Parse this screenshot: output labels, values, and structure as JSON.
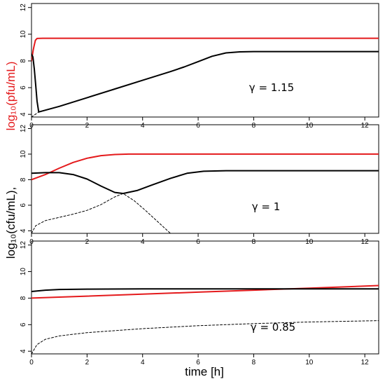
{
  "chart_data": [
    {
      "type": "line",
      "annotation": "γ = 1.15",
      "xlim": [
        0,
        12.5
      ],
      "ylim": [
        3.8,
        12.3
      ],
      "x_ticks": [
        0,
        2,
        4,
        6,
        8,
        10,
        12
      ],
      "y_ticks": [
        4,
        6,
        8,
        10,
        12
      ],
      "series": [
        {
          "color": "#e41a1c",
          "style": "solid",
          "points": [
            [
              0,
              8.0
            ],
            [
              0.03,
              8.4
            ],
            [
              0.06,
              8.8
            ],
            [
              0.1,
              9.2
            ],
            [
              0.14,
              9.55
            ],
            [
              0.2,
              9.68
            ],
            [
              0.4,
              9.7
            ],
            [
              12.5,
              9.7
            ]
          ]
        },
        {
          "color": "#000000",
          "style": "solid",
          "points": [
            [
              0,
              8.5
            ],
            [
              0.05,
              8.3
            ],
            [
              0.1,
              7.4
            ],
            [
              0.15,
              6.2
            ],
            [
              0.2,
              5.0
            ],
            [
              0.26,
              4.18
            ],
            [
              1,
              4.6
            ],
            [
              2,
              5.25
            ],
            [
              3,
              5.9
            ],
            [
              4,
              6.55
            ],
            [
              5,
              7.2
            ],
            [
              5.5,
              7.55
            ],
            [
              6,
              7.95
            ],
            [
              6.5,
              8.35
            ],
            [
              7,
              8.6
            ],
            [
              7.5,
              8.68
            ],
            [
              8,
              8.7
            ],
            [
              12.5,
              8.7
            ]
          ]
        },
        {
          "color": "#000000",
          "style": "dashed",
          "points": [
            [
              0,
              3.8
            ],
            [
              0.1,
              3.95
            ],
            [
              0.2,
              4.08
            ],
            [
              0.26,
              4.18
            ]
          ]
        }
      ]
    },
    {
      "type": "line",
      "annotation": "γ = 1",
      "xlim": [
        0,
        12.5
      ],
      "ylim": [
        3.8,
        12.3
      ],
      "x_ticks": [
        0,
        2,
        4,
        6,
        8,
        10,
        12
      ],
      "y_ticks": [
        4,
        6,
        8,
        10,
        12
      ],
      "series": [
        {
          "color": "#e41a1c",
          "style": "solid",
          "points": [
            [
              0,
              8.0
            ],
            [
              0.5,
              8.4
            ],
            [
              1,
              8.9
            ],
            [
              1.5,
              9.35
            ],
            [
              2,
              9.68
            ],
            [
              2.5,
              9.88
            ],
            [
              3,
              9.97
            ],
            [
              3.5,
              10.0
            ],
            [
              12.5,
              10.0
            ]
          ]
        },
        {
          "color": "#000000",
          "style": "solid",
          "points": [
            [
              0,
              8.5
            ],
            [
              0.5,
              8.55
            ],
            [
              1,
              8.55
            ],
            [
              1.5,
              8.4
            ],
            [
              2,
              8.05
            ],
            [
              2.5,
              7.5
            ],
            [
              3,
              7.0
            ],
            [
              3.3,
              6.92
            ],
            [
              3.8,
              7.15
            ],
            [
              4.3,
              7.55
            ],
            [
              5,
              8.1
            ],
            [
              5.6,
              8.5
            ],
            [
              6.2,
              8.66
            ],
            [
              7,
              8.7
            ],
            [
              12.5,
              8.7
            ]
          ]
        },
        {
          "color": "#000000",
          "style": "dashed",
          "points": [
            [
              0,
              3.8
            ],
            [
              0.15,
              4.4
            ],
            [
              0.5,
              4.8
            ],
            [
              1,
              5.05
            ],
            [
              1.5,
              5.3
            ],
            [
              2,
              5.6
            ],
            [
              2.5,
              6.05
            ],
            [
              3.0,
              6.65
            ],
            [
              3.3,
              6.92
            ],
            [
              3.7,
              6.35
            ],
            [
              4.1,
              5.6
            ],
            [
              4.6,
              4.6
            ],
            [
              5.0,
              3.8
            ]
          ]
        }
      ]
    },
    {
      "type": "line",
      "annotation": "γ = 0.85",
      "xlim": [
        0,
        12.5
      ],
      "ylim": [
        3.8,
        12.3
      ],
      "x_ticks": [
        0,
        2,
        4,
        6,
        8,
        10,
        12
      ],
      "y_ticks": [
        4,
        6,
        8,
        10,
        12
      ],
      "series": [
        {
          "color": "#e41a1c",
          "style": "solid",
          "points": [
            [
              0,
              8.0
            ],
            [
              2,
              8.15
            ],
            [
              4,
              8.3
            ],
            [
              6,
              8.45
            ],
            [
              8,
              8.6
            ],
            [
              10,
              8.75
            ],
            [
              12.5,
              8.95
            ]
          ]
        },
        {
          "color": "#000000",
          "style": "solid",
          "points": [
            [
              0,
              8.5
            ],
            [
              0.5,
              8.6
            ],
            [
              1,
              8.65
            ],
            [
              2,
              8.68
            ],
            [
              4,
              8.7
            ],
            [
              12.5,
              8.7
            ]
          ]
        },
        {
          "color": "#000000",
          "style": "dashed",
          "points": [
            [
              0,
              3.8
            ],
            [
              0.2,
              4.5
            ],
            [
              0.5,
              4.9
            ],
            [
              1,
              5.15
            ],
            [
              2,
              5.4
            ],
            [
              4,
              5.7
            ],
            [
              6,
              5.92
            ],
            [
              8,
              6.08
            ],
            [
              10,
              6.2
            ],
            [
              12.5,
              6.3
            ]
          ]
        }
      ]
    }
  ],
  "axis_titles": {
    "ylabel_red": "log₁₀(pfu/mL)",
    "ylabel_black": "log₁₀(cfu/mL),",
    "xlabel": "time [h]"
  }
}
